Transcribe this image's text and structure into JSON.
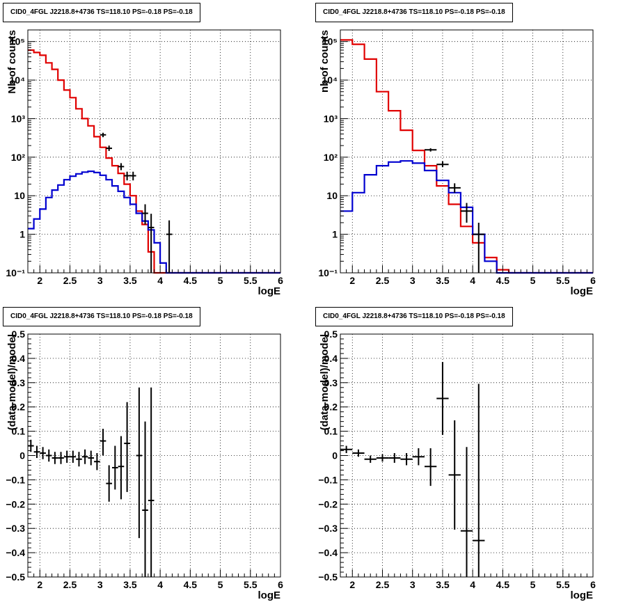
{
  "chart_data": [
    {
      "type": "line",
      "panel_title": "CID0_4FGL J2218.8+4736 TS=118.10 PS=-0.18 PS=-0.18",
      "xlabel": "logE",
      "ylabel": "Nb of counts",
      "log_y": true,
      "xlim": [
        1.8,
        6
      ],
      "ylim": [
        0.1,
        200000
      ],
      "grid": true,
      "x_ticks": [
        "2",
        "2.5",
        "3",
        "3.5",
        "4",
        "4.5",
        "5",
        "5.5",
        "6"
      ],
      "y_ticks": [
        "10⁻¹",
        "1",
        "10",
        "10²",
        "10³",
        "10⁴",
        "10⁵"
      ],
      "bin_edges": [
        1.8,
        1.9,
        2.0,
        2.1,
        2.2,
        2.3,
        2.4,
        2.5,
        2.6,
        2.7,
        2.8,
        2.9,
        3.0,
        3.1,
        3.2,
        3.3,
        3.4,
        3.5,
        3.6,
        3.7,
        3.8,
        3.9,
        4.0,
        4.1,
        4.2,
        4.3,
        4.4,
        4.5,
        4.6,
        4.7,
        4.8,
        4.9,
        5.0,
        5.1,
        5.2,
        5.3,
        5.4,
        5.5,
        5.6,
        5.7,
        5.8,
        5.9,
        6.0
      ],
      "series": [
        {
          "color": "#e00000",
          "style": "histogram",
          "values": [
            60000,
            52000,
            44000,
            28000,
            19000,
            10000,
            5500,
            3500,
            1800,
            1000,
            650,
            340,
            180,
            95,
            60,
            38,
            20,
            10,
            4,
            1.8,
            0.35,
            0.1,
            0.1,
            0.1,
            0.1,
            0.1,
            0.1,
            0.1,
            0.1,
            0.1,
            0.1,
            0.1,
            0.1,
            0.1,
            0.1,
            0.1,
            0.1,
            0.1,
            0.1,
            0.1,
            0.1,
            0.1
          ]
        },
        {
          "color": "#0000d0",
          "style": "histogram",
          "values": [
            1.4,
            2.5,
            4.5,
            9,
            14,
            19,
            26,
            32,
            37,
            41,
            43,
            40,
            34,
            26,
            18,
            13,
            9,
            6,
            3.5,
            2.2,
            1.3,
            0.6,
            0.18,
            0.1,
            0.1,
            0.1,
            0.1,
            0.1,
            0.1,
            0.1,
            0.1,
            0.1,
            0.1,
            0.1,
            0.1,
            0.1,
            0.1,
            0.1,
            0.1,
            0.1,
            0.1,
            0.1
          ]
        },
        {
          "color": "#000000",
          "style": "errorbars",
          "points": [
            {
              "x": 3.05,
              "xerr": 0.05,
              "y": 380,
              "ylo": 330,
              "yhi": 430
            },
            {
              "x": 3.15,
              "xerr": 0.05,
              "y": 170,
              "ylo": 145,
              "yhi": 200
            },
            {
              "x": 3.35,
              "xerr": 0.05,
              "y": 57,
              "ylo": 46,
              "yhi": 70
            },
            {
              "x": 3.45,
              "xerr": 0.05,
              "y": 33,
              "ylo": 25,
              "yhi": 42
            },
            {
              "x": 3.55,
              "xerr": 0.05,
              "y": 33,
              "ylo": 25,
              "yhi": 42
            },
            {
              "x": 3.75,
              "xerr": 0.05,
              "y": 3.5,
              "ylo": 1.8,
              "yhi": 6
            },
            {
              "x": 3.85,
              "xerr": 0.05,
              "y": 1.5,
              "ylo": 0.1,
              "yhi": 3.4
            },
            {
              "x": 4.15,
              "xerr": 0.05,
              "y": 1.0,
              "ylo": 0.1,
              "yhi": 2.3
            }
          ]
        }
      ]
    },
    {
      "type": "line",
      "panel_title": "CID0_4FGL J2218.8+4736 TS=118.10 PS=-0.18 PS=-0.18",
      "xlabel": "logE",
      "ylabel": "nb of counts",
      "log_y": true,
      "xlim": [
        1.8,
        6
      ],
      "ylim": [
        0.1,
        200000
      ],
      "grid": true,
      "x_ticks": [
        "2",
        "2.5",
        "3",
        "3.5",
        "4",
        "4.5",
        "5",
        "5.5",
        "6"
      ],
      "y_ticks": [
        "10⁻¹",
        "1",
        "10",
        "10²",
        "10³",
        "10⁴",
        "10⁵"
      ],
      "bin_edges": [
        1.8,
        2.0,
        2.2,
        2.4,
        2.6,
        2.8,
        3.0,
        3.2,
        3.4,
        3.6,
        3.8,
        4.0,
        4.2,
        4.4,
        4.6,
        4.8,
        5.0,
        5.2,
        5.4,
        5.6,
        5.8,
        6.0
      ],
      "series": [
        {
          "color": "#e00000",
          "style": "histogram",
          "values": [
            110000,
            85000,
            35000,
            5000,
            1600,
            500,
            150,
            60,
            18,
            6,
            1.6,
            0.6,
            0.25,
            0.12,
            0.1,
            0.1,
            0.1,
            0.1,
            0.1,
            0.1,
            0.1
          ]
        },
        {
          "color": "#0000d0",
          "style": "histogram",
          "values": [
            4,
            12,
            35,
            60,
            75,
            80,
            70,
            45,
            25,
            12,
            5,
            1,
            0.2,
            0.1,
            0.1,
            0.1,
            0.1,
            0.1,
            0.1,
            0.1,
            0.1
          ]
        },
        {
          "color": "#000000",
          "style": "errorbars",
          "points": [
            {
              "x": 3.3,
              "xerr": 0.1,
              "y": 155,
              "ylo": 140,
              "yhi": 170
            },
            {
              "x": 3.5,
              "xerr": 0.1,
              "y": 65,
              "ylo": 55,
              "yhi": 78
            },
            {
              "x": 3.7,
              "xerr": 0.1,
              "y": 16,
              "ylo": 12,
              "yhi": 21
            },
            {
              "x": 3.9,
              "xerr": 0.1,
              "y": 4,
              "ylo": 2,
              "yhi": 6.5
            },
            {
              "x": 4.1,
              "xerr": 0.1,
              "y": 1,
              "ylo": 0.1,
              "yhi": 2
            }
          ]
        }
      ]
    },
    {
      "type": "scatter",
      "panel_title": "CID0_4FGL J2218.8+4736 TS=118.10 PS=-0.18 PS=-0.18",
      "xlabel": "logE",
      "ylabel": "(data-model)/model",
      "log_y": false,
      "xlim": [
        1.8,
        6
      ],
      "ylim": [
        -0.5,
        0.5
      ],
      "grid": true,
      "x_ticks": [
        "2",
        "2.5",
        "3",
        "3.5",
        "4",
        "4.5",
        "5",
        "5.5",
        "6"
      ],
      "y_ticks": [
        "−0.5",
        "−0.4",
        "−0.3",
        "−0.2",
        "−0.1",
        "0",
        "0.1",
        "0.2",
        "0.3",
        "0.4",
        "0.5"
      ],
      "series": [
        {
          "color": "#000000",
          "style": "errorbars",
          "points": [
            {
              "x": 1.85,
              "xerr": 0.05,
              "y": 0.04,
              "ylo": 0.015,
              "yhi": 0.065
            },
            {
              "x": 1.95,
              "xerr": 0.05,
              "y": 0.015,
              "ylo": -0.01,
              "yhi": 0.04
            },
            {
              "x": 2.05,
              "xerr": 0.05,
              "y": 0.01,
              "ylo": -0.015,
              "yhi": 0.035
            },
            {
              "x": 2.15,
              "xerr": 0.05,
              "y": 0.0,
              "ylo": -0.025,
              "yhi": 0.025
            },
            {
              "x": 2.25,
              "xerr": 0.05,
              "y": -0.01,
              "ylo": -0.035,
              "yhi": 0.015
            },
            {
              "x": 2.35,
              "xerr": 0.05,
              "y": -0.01,
              "ylo": -0.035,
              "yhi": 0.015
            },
            {
              "x": 2.45,
              "xerr": 0.05,
              "y": -0.005,
              "ylo": -0.03,
              "yhi": 0.02
            },
            {
              "x": 2.55,
              "xerr": 0.05,
              "y": -0.005,
              "ylo": -0.03,
              "yhi": 0.02
            },
            {
              "x": 2.65,
              "xerr": 0.05,
              "y": -0.015,
              "ylo": -0.045,
              "yhi": 0.015
            },
            {
              "x": 2.75,
              "xerr": 0.05,
              "y": -0.005,
              "ylo": -0.035,
              "yhi": 0.025
            },
            {
              "x": 2.85,
              "xerr": 0.05,
              "y": -0.01,
              "ylo": -0.04,
              "yhi": 0.02
            },
            {
              "x": 2.95,
              "xerr": 0.05,
              "y": -0.025,
              "ylo": -0.06,
              "yhi": 0.01
            },
            {
              "x": 3.05,
              "xerr": 0.05,
              "y": 0.06,
              "ylo": 0.0,
              "yhi": 0.11
            },
            {
              "x": 3.15,
              "xerr": 0.05,
              "y": -0.115,
              "ylo": -0.19,
              "yhi": -0.04
            },
            {
              "x": 3.25,
              "xerr": 0.05,
              "y": -0.05,
              "ylo": -0.14,
              "yhi": 0.04
            },
            {
              "x": 3.35,
              "xerr": 0.05,
              "y": -0.045,
              "ylo": -0.18,
              "yhi": 0.08
            },
            {
              "x": 3.45,
              "xerr": 0.05,
              "y": 0.05,
              "ylo": -0.15,
              "yhi": 0.22
            },
            {
              "x": 3.65,
              "xerr": 0.05,
              "y": 0.0,
              "ylo": -0.34,
              "yhi": 0.28
            },
            {
              "x": 3.75,
              "xerr": 0.05,
              "y": -0.225,
              "ylo": -0.5,
              "yhi": 0.14
            },
            {
              "x": 3.85,
              "xerr": 0.05,
              "y": -0.185,
              "ylo": -0.5,
              "yhi": 0.28
            }
          ]
        }
      ]
    },
    {
      "type": "scatter",
      "panel_title": "CID0_4FGL J2218.8+4736 TS=118.10 PS=-0.18 PS=-0.18",
      "xlabel": "logE",
      "ylabel": "(data-model)/model",
      "log_y": false,
      "xlim": [
        1.8,
        6
      ],
      "ylim": [
        -0.5,
        0.5
      ],
      "grid": true,
      "x_ticks": [
        "2",
        "2.5",
        "3",
        "3.5",
        "4",
        "4.5",
        "5",
        "5.5",
        "6"
      ],
      "y_ticks": [
        "−0.5",
        "−0.4",
        "−0.3",
        "−0.2",
        "−0.1",
        "0",
        "0.1",
        "0.2",
        "0.3",
        "0.4",
        "0.5"
      ],
      "series": [
        {
          "color": "#000000",
          "style": "errorbars",
          "points": [
            {
              "x": 1.9,
              "xerr": 0.1,
              "y": 0.025,
              "ylo": 0.01,
              "yhi": 0.04
            },
            {
              "x": 2.1,
              "xerr": 0.1,
              "y": 0.01,
              "ylo": -0.005,
              "yhi": 0.025
            },
            {
              "x": 2.3,
              "xerr": 0.1,
              "y": -0.015,
              "ylo": -0.03,
              "yhi": 0.0
            },
            {
              "x": 2.5,
              "xerr": 0.1,
              "y": -0.01,
              "ylo": -0.025,
              "yhi": 0.005
            },
            {
              "x": 2.7,
              "xerr": 0.1,
              "y": -0.01,
              "ylo": -0.03,
              "yhi": 0.01
            },
            {
              "x": 2.9,
              "xerr": 0.1,
              "y": -0.015,
              "ylo": -0.04,
              "yhi": 0.01
            },
            {
              "x": 3.1,
              "xerr": 0.1,
              "y": -0.005,
              "ylo": -0.04,
              "yhi": 0.03
            },
            {
              "x": 3.3,
              "xerr": 0.1,
              "y": -0.045,
              "ylo": -0.125,
              "yhi": 0.03
            },
            {
              "x": 3.5,
              "xerr": 0.1,
              "y": 0.235,
              "ylo": 0.085,
              "yhi": 0.385
            },
            {
              "x": 3.7,
              "xerr": 0.1,
              "y": -0.08,
              "ylo": -0.305,
              "yhi": 0.145
            },
            {
              "x": 3.9,
              "xerr": 0.1,
              "y": -0.31,
              "ylo": -0.5,
              "yhi": 0.035
            },
            {
              "x": 4.1,
              "xerr": 0.1,
              "y": -0.35,
              "ylo": -0.5,
              "yhi": 0.295
            }
          ]
        }
      ]
    }
  ]
}
